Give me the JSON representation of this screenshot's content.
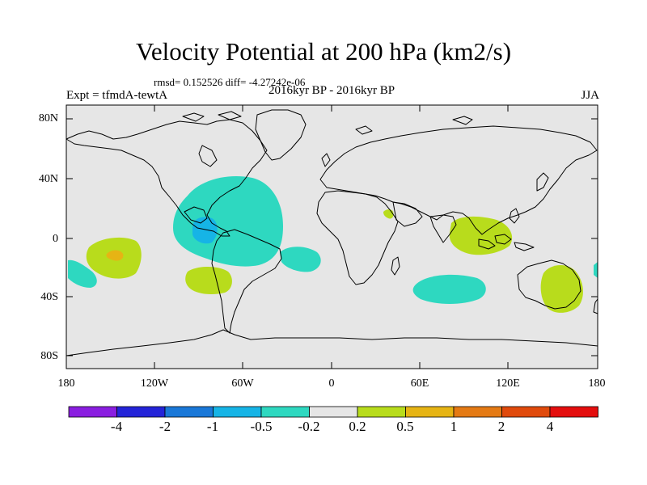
{
  "title": "Velocity Potential at 200 hPa (km2/s)",
  "stats": "rmsd= 0.152526 diff= -4.27242e-06",
  "experiment_label": "Expt = tfmdA-tewtA",
  "period_label": "2016kyr BP - 2016kyr BP",
  "season_label": "JJA",
  "lat_labels": [
    "80N",
    "40N",
    "0",
    "40S",
    "80S"
  ],
  "lon_labels": [
    "180",
    "120W",
    "60W",
    "0",
    "60E",
    "120E",
    "180"
  ],
  "colorbar": {
    "labels": [
      "-4",
      "-2",
      "-1",
      "-0.5",
      "-0.2",
      "0.2",
      "0.5",
      "1",
      "2",
      "4"
    ],
    "colors": [
      "#8a1ee0",
      "#2424d8",
      "#1a78d8",
      "#16b4e6",
      "#2ed8c0",
      "#e6e6e6",
      "#b8dc1c",
      "#e6b414",
      "#e47a14",
      "#e04a0c",
      "#e40e0e"
    ]
  },
  "map_colors": {
    "background": "#e6e6e6",
    "neg_light": "#2ed8c0",
    "neg_medium": "#16b4e6",
    "pos_light": "#b8dc1c",
    "pos_medium": "#e6b414"
  },
  "anomaly_regions": [
    {
      "name": "central-america-negative",
      "sign": "negative",
      "category": "-0.5 to -0.2"
    },
    {
      "name": "central-america-core",
      "sign": "negative",
      "category": "-1 to -0.5"
    },
    {
      "name": "east-pacific-negative",
      "sign": "negative",
      "category": "-0.5 to -0.2"
    },
    {
      "name": "south-atlantic-negative",
      "sign": "negative",
      "category": "-0.5 to -0.2"
    },
    {
      "name": "south-indian-negative",
      "sign": "negative",
      "category": "-0.5 to -0.2"
    },
    {
      "name": "central-pacific-positive",
      "sign": "positive",
      "category": "0.2 to 0.5"
    },
    {
      "name": "central-pacific-core",
      "sign": "positive",
      "category": "0.5 to 1"
    },
    {
      "name": "southeast-pacific-positive",
      "sign": "positive",
      "category": "0.2 to 0.5"
    },
    {
      "name": "east-africa-positive",
      "sign": "positive",
      "category": "0.2 to 0.5"
    },
    {
      "name": "maritime-continent-positive",
      "sign": "positive",
      "category": "0.2 to 0.5"
    },
    {
      "name": "australia-positive",
      "sign": "positive",
      "category": "0.2 to 0.5"
    }
  ]
}
